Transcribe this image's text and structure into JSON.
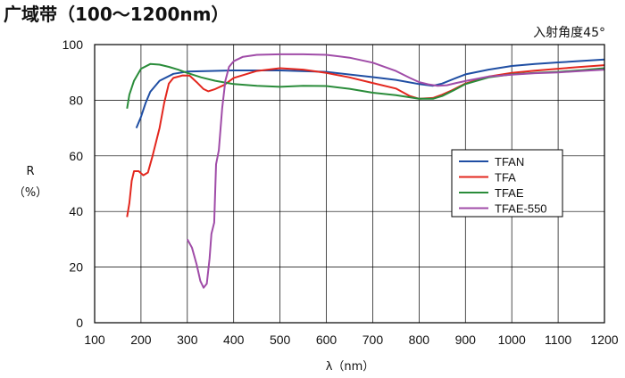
{
  "chart_data": {
    "type": "line",
    "title": "广域带（100〜1200nm）",
    "annotation": "入射角度45°",
    "xlabel": "λ（nm）",
    "ylabel_line1": "R",
    "ylabel_line2": "（%）",
    "xlim": [
      100,
      1200
    ],
    "ylim": [
      0,
      100
    ],
    "x_ticks": [
      100,
      200,
      300,
      400,
      500,
      600,
      700,
      800,
      900,
      1000,
      1100,
      1200
    ],
    "y_ticks": [
      0,
      20,
      40,
      60,
      80,
      100
    ],
    "grid": true,
    "legend_position": "right",
    "series": [
      {
        "name": "TFAN",
        "color": "#1f4ea3",
        "points": [
          [
            190,
            70
          ],
          [
            200,
            74
          ],
          [
            210,
            79
          ],
          [
            220,
            83
          ],
          [
            240,
            87
          ],
          [
            270,
            89.5
          ],
          [
            300,
            90.3
          ],
          [
            350,
            90.5
          ],
          [
            400,
            90.7
          ],
          [
            500,
            90.7
          ],
          [
            600,
            90.2
          ],
          [
            700,
            88.3
          ],
          [
            750,
            87.3
          ],
          [
            800,
            85.8
          ],
          [
            830,
            85.2
          ],
          [
            850,
            86
          ],
          [
            880,
            88
          ],
          [
            900,
            89.3
          ],
          [
            950,
            91
          ],
          [
            1000,
            92.3
          ],
          [
            1050,
            93
          ],
          [
            1100,
            93.6
          ],
          [
            1150,
            94.1
          ],
          [
            1200,
            94.6
          ]
        ]
      },
      {
        "name": "TFA",
        "color": "#e3271e",
        "points": [
          [
            170,
            38
          ],
          [
            175,
            43
          ],
          [
            180,
            51
          ],
          [
            185,
            54.5
          ],
          [
            195,
            54.5
          ],
          [
            205,
            53
          ],
          [
            215,
            54
          ],
          [
            225,
            60
          ],
          [
            240,
            70
          ],
          [
            250,
            79
          ],
          [
            260,
            86
          ],
          [
            270,
            88
          ],
          [
            290,
            88.9
          ],
          [
            305,
            88.8
          ],
          [
            320,
            86.5
          ],
          [
            335,
            84
          ],
          [
            345,
            83.2
          ],
          [
            360,
            84
          ],
          [
            380,
            85.5
          ],
          [
            400,
            88
          ],
          [
            450,
            90.5
          ],
          [
            500,
            91.5
          ],
          [
            550,
            91
          ],
          [
            600,
            89.8
          ],
          [
            650,
            88.2
          ],
          [
            700,
            86.2
          ],
          [
            750,
            84.2
          ],
          [
            780,
            81.5
          ],
          [
            800,
            80.5
          ],
          [
            830,
            80.8
          ],
          [
            850,
            82
          ],
          [
            870,
            83.5
          ],
          [
            900,
            86
          ],
          [
            950,
            88.5
          ],
          [
            1000,
            89.8
          ],
          [
            1050,
            90.6
          ],
          [
            1100,
            91.3
          ],
          [
            1150,
            92
          ],
          [
            1200,
            92.6
          ]
        ]
      },
      {
        "name": "TFAE",
        "color": "#2a8c3a",
        "points": [
          [
            170,
            77
          ],
          [
            175,
            82
          ],
          [
            185,
            87
          ],
          [
            200,
            91.3
          ],
          [
            220,
            93
          ],
          [
            240,
            92.8
          ],
          [
            260,
            92
          ],
          [
            280,
            91
          ],
          [
            300,
            89.8
          ],
          [
            330,
            88.2
          ],
          [
            360,
            87
          ],
          [
            400,
            85.8
          ],
          [
            450,
            85.2
          ],
          [
            500,
            84.8
          ],
          [
            550,
            85.2
          ],
          [
            600,
            85.1
          ],
          [
            650,
            84.1
          ],
          [
            700,
            82.7
          ],
          [
            750,
            81.8
          ],
          [
            800,
            80.5
          ],
          [
            830,
            80.5
          ],
          [
            850,
            81.5
          ],
          [
            880,
            84
          ],
          [
            900,
            85.8
          ],
          [
            950,
            88.2
          ],
          [
            1000,
            89.3
          ],
          [
            1050,
            89.8
          ],
          [
            1100,
            90.2
          ],
          [
            1150,
            90.8
          ],
          [
            1200,
            91.5
          ]
        ]
      },
      {
        "name": "TFAE-550",
        "color": "#a04ca8",
        "points": [
          [
            300,
            30
          ],
          [
            310,
            27
          ],
          [
            320,
            21
          ],
          [
            328,
            15
          ],
          [
            335,
            12.6
          ],
          [
            342,
            14
          ],
          [
            348,
            23
          ],
          [
            352,
            32
          ],
          [
            358,
            36
          ],
          [
            362,
            57
          ],
          [
            368,
            62
          ],
          [
            375,
            77
          ],
          [
            382,
            87
          ],
          [
            390,
            92
          ],
          [
            400,
            94
          ],
          [
            420,
            95.6
          ],
          [
            450,
            96.3
          ],
          [
            500,
            96.5
          ],
          [
            550,
            96.5
          ],
          [
            600,
            96.3
          ],
          [
            650,
            95.3
          ],
          [
            700,
            93.5
          ],
          [
            750,
            90.5
          ],
          [
            780,
            88
          ],
          [
            800,
            86.5
          ],
          [
            820,
            85.7
          ],
          [
            840,
            85.2
          ],
          [
            860,
            85.4
          ],
          [
            880,
            86.2
          ],
          [
            900,
            86.9
          ],
          [
            950,
            88.5
          ],
          [
            1000,
            89.2
          ],
          [
            1050,
            89.7
          ],
          [
            1100,
            90
          ],
          [
            1150,
            90.5
          ],
          [
            1200,
            91
          ]
        ]
      }
    ]
  }
}
